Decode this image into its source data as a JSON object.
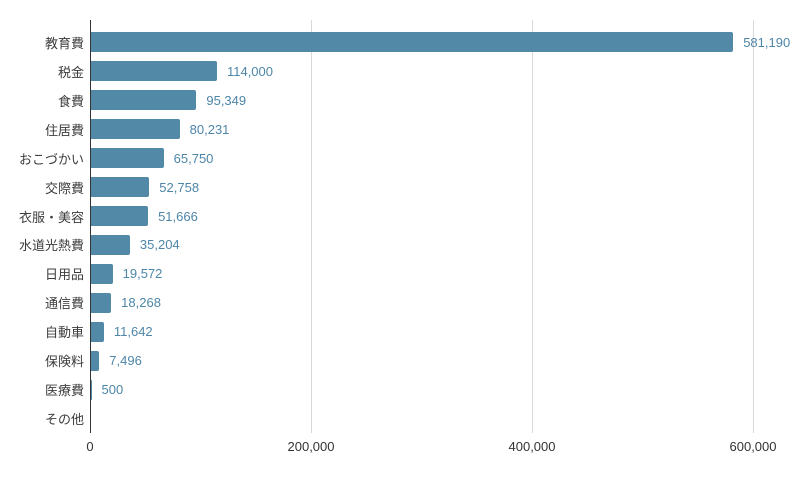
{
  "chart_data": {
    "type": "bar",
    "orientation": "horizontal",
    "title": "",
    "xlabel": "",
    "ylabel": "",
    "categories": [
      "教育費",
      "税金",
      "食費",
      "住居費",
      "おこづかい",
      "交際費",
      "衣服・美容",
      "水道光熱費",
      "日用品",
      "通信費",
      "自動車",
      "保険料",
      "医療費",
      "その他"
    ],
    "values": [
      581190,
      114000,
      95349,
      80231,
      65750,
      52758,
      51666,
      35204,
      19572,
      18268,
      11642,
      7496,
      500,
      0
    ],
    "value_labels": [
      "581,190",
      "114,000",
      "95,349",
      "80,231",
      "65,750",
      "52,758",
      "51,666",
      "35,204",
      "19,572",
      "18,268",
      "11,642",
      "7,496",
      "500",
      ""
    ],
    "xlim": [
      0,
      600000
    ],
    "x_ticks": [
      0,
      200000,
      400000,
      600000
    ],
    "x_tick_labels": [
      "0",
      "200,000",
      "400,000",
      "600,000"
    ],
    "grid": true,
    "legend": "none",
    "colors": {
      "bar": "#5289a7",
      "value_label": "#4d86a8",
      "category_label": "#3c3c3c",
      "axis_tick_label": "#333333",
      "gridline": "#d9d9d9",
      "axis_line": "#333333",
      "background": "#ffffff"
    }
  }
}
